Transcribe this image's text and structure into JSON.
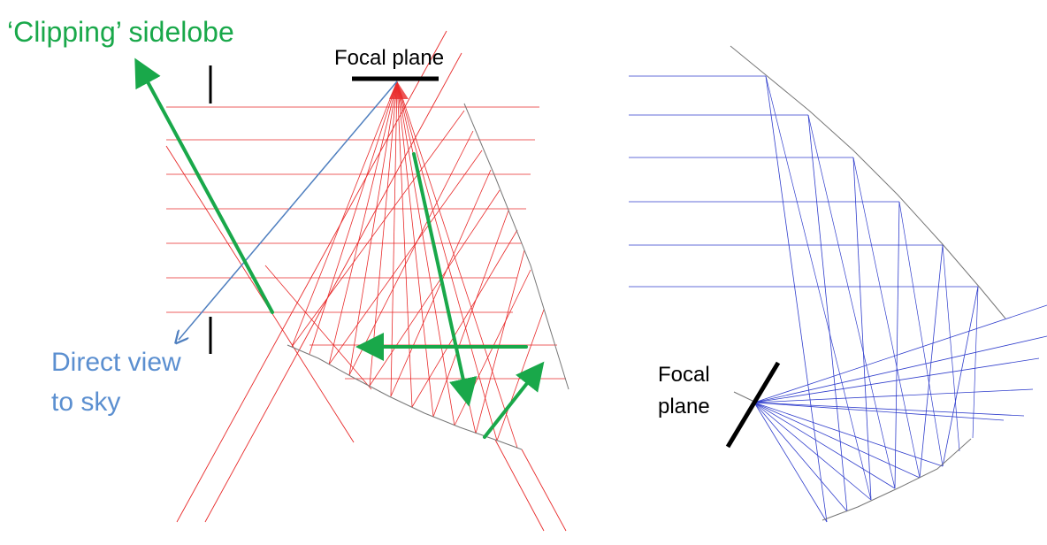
{
  "labels": {
    "clipping_sidelobe": "‘Clipping’ sidelobe",
    "focal_plane_left": "Focal plane",
    "direct_view_line1": "Direct view",
    "direct_view_line2": "to sky",
    "focal_plane_right_line1": "Focal",
    "focal_plane_right_line2": "plane"
  },
  "colors": {
    "red_rays": "#e82a2a",
    "blue_rays": "#2f3dcc",
    "green_arrows": "#19a84a",
    "direct_view": "#4f7fbf",
    "mirror": "#777777",
    "focal_bar": "#000000"
  },
  "icons": [
    "arrow-icon",
    "focal-plane-bar-icon"
  ]
}
